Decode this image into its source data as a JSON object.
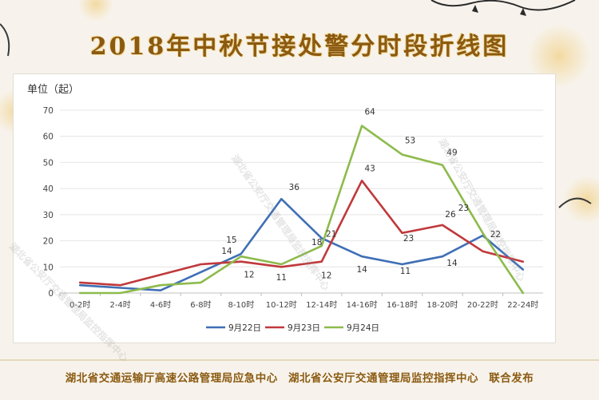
{
  "page": {
    "title": "2018年中秋节接处警分时段折线图",
    "unit_label": "单位（起）",
    "footer": {
      "org1": "湖北省交通运输厅高速公路管理局应急中心",
      "org2": "湖北省公安厅交通管理局监控指挥中心",
      "suffix": "联合发布"
    },
    "watermarks": [
      "湖北省公安厅交通管理局监控指挥中心",
      "湖北省公安厅交通管理局监控指挥中心",
      "湖北省公安厅交通管理局监控指挥中心"
    ]
  },
  "chart_data": {
    "type": "line",
    "categories": [
      "0-2时",
      "2-4时",
      "4-6时",
      "6-8时",
      "8-10时",
      "10-12时",
      "12-14时",
      "14-16时",
      "16-18时",
      "18-20时",
      "20-22时",
      "22-24时"
    ],
    "ylim": [
      0,
      70
    ],
    "yticks": [
      0,
      10,
      20,
      30,
      40,
      50,
      60,
      70
    ],
    "grid": true,
    "legend_position": "bottom",
    "series": [
      {
        "name": "9月22日",
        "color": "#3f6fb5",
        "values": [
          3,
          2,
          1,
          8,
          15,
          36,
          21,
          14,
          11,
          14,
          22,
          9
        ]
      },
      {
        "name": "9月23日",
        "color": "#c0393b",
        "values": [
          4,
          3,
          7,
          11,
          12,
          10,
          12,
          43,
          23,
          26,
          16,
          12
        ]
      },
      {
        "name": "9月24日",
        "color": "#8dbb4c",
        "values": [
          0,
          0,
          3,
          4,
          14,
          11,
          18,
          64,
          53,
          49,
          23,
          0
        ]
      }
    ],
    "data_labels": [
      {
        "text": "14",
        "series": 2,
        "index": 4
      },
      {
        "text": "15",
        "series": 0,
        "index": 4
      },
      {
        "text": "12",
        "series": 1,
        "index": 4
      },
      {
        "text": "36",
        "series": 0,
        "index": 5
      },
      {
        "text": "11",
        "series": 2,
        "index": 5
      },
      {
        "text": "18",
        "series": 2,
        "index": 6
      },
      {
        "text": "21",
        "series": 0,
        "index": 6
      },
      {
        "text": "12",
        "series": 1,
        "index": 6
      },
      {
        "text": "64",
        "series": 2,
        "index": 7
      },
      {
        "text": "43",
        "series": 1,
        "index": 7
      },
      {
        "text": "14",
        "series": 0,
        "index": 7
      },
      {
        "text": "53",
        "series": 2,
        "index": 8
      },
      {
        "text": "23",
        "series": 1,
        "index": 8
      },
      {
        "text": "11",
        "series": 0,
        "index": 8
      },
      {
        "text": "49",
        "series": 2,
        "index": 9
      },
      {
        "text": "26",
        "series": 1,
        "index": 9
      },
      {
        "text": "14",
        "series": 0,
        "index": 9
      },
      {
        "text": "23",
        "series": 2,
        "index": 10
      },
      {
        "text": "22",
        "series": 0,
        "index": 10
      }
    ]
  }
}
